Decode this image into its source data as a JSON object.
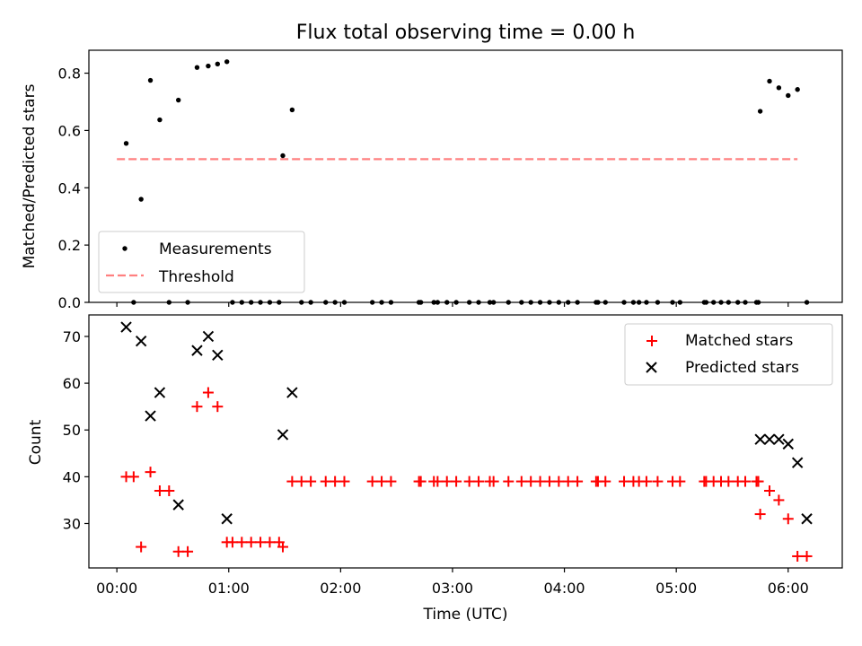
{
  "chart_data": [
    {
      "type": "scatter",
      "title": "Flux total observing time = 0.00 h",
      "xlabel": "",
      "ylabel": "Matched/Predicted stars",
      "ylim": [
        0,
        0.88
      ],
      "xlim_minutes": [
        -15,
        389
      ],
      "yticks": [
        0.0,
        0.2,
        0.4,
        0.6,
        0.8
      ],
      "ytick_labels": [
        "0.0",
        "0.2",
        "0.4",
        "0.6",
        "0.8"
      ],
      "legend_position": "lower-left",
      "series": [
        {
          "name": "Measurements",
          "marker": "dot",
          "color": "#000000",
          "points": [
            [
              5,
              0.555
            ],
            [
              9,
              0.0
            ],
            [
              13,
              0.36
            ],
            [
              18,
              0.775
            ],
            [
              23,
              0.637
            ],
            [
              28,
              0.0
            ],
            [
              33,
              0.706
            ],
            [
              38,
              0.0
            ],
            [
              43,
              0.82
            ],
            [
              49,
              0.825
            ],
            [
              54,
              0.832
            ],
            [
              59,
              0.84
            ],
            [
              62,
              0.0
            ],
            [
              67,
              0.0
            ],
            [
              72,
              0.0
            ],
            [
              77,
              0.0
            ],
            [
              82,
              0.0
            ],
            [
              87,
              0.0
            ],
            [
              89,
              0.512
            ],
            [
              94,
              0.672
            ],
            [
              99,
              0.0
            ],
            [
              104,
              0.0
            ],
            [
              112,
              0.0
            ],
            [
              117,
              0.0
            ],
            [
              122,
              0.0
            ],
            [
              137,
              0.0
            ],
            [
              142,
              0.0
            ],
            [
              147,
              0.0
            ],
            [
              162,
              0.0
            ],
            [
              163,
              0.0
            ],
            [
              170,
              0.0
            ],
            [
              172,
              0.0
            ],
            [
              177,
              0.0
            ],
            [
              182,
              0.0
            ],
            [
              189,
              0.0
            ],
            [
              194,
              0.0
            ],
            [
              200,
              0.0
            ],
            [
              202,
              0.0
            ],
            [
              210,
              0.0
            ],
            [
              217,
              0.0
            ],
            [
              222,
              0.0
            ],
            [
              227,
              0.0
            ],
            [
              232,
              0.0
            ],
            [
              237,
              0.0
            ],
            [
              242,
              0.0
            ],
            [
              247,
              0.0
            ],
            [
              257,
              0.0
            ],
            [
              258,
              0.0
            ],
            [
              262,
              0.0
            ],
            [
              272,
              0.0
            ],
            [
              277,
              0.0
            ],
            [
              280,
              0.0
            ],
            [
              284,
              0.0
            ],
            [
              290,
              0.0
            ],
            [
              298,
              0.0
            ],
            [
              302,
              0.0
            ],
            [
              315,
              0.0
            ],
            [
              316,
              0.0
            ],
            [
              320,
              0.0
            ],
            [
              324,
              0.0
            ],
            [
              328,
              0.0
            ],
            [
              333,
              0.0
            ],
            [
              337,
              0.0
            ],
            [
              343,
              0.0
            ],
            [
              344,
              0.0
            ],
            [
              345,
              0.667
            ],
            [
              350,
              0.772
            ],
            [
              355,
              0.749
            ],
            [
              360,
              0.722
            ],
            [
              365,
              0.743
            ],
            [
              370,
              0.0
            ]
          ]
        },
        {
          "name": "Threshold",
          "style": "dashed",
          "color": "#ff8080",
          "x": [
            0,
            365
          ],
          "y": [
            0.5,
            0.5
          ]
        }
      ]
    },
    {
      "type": "scatter",
      "title": "",
      "xlabel": "Time (UTC)",
      "ylabel": "Count",
      "ylim": [
        20.5,
        74.6
      ],
      "xlim_minutes": [
        -15,
        389
      ],
      "yticks": [
        30,
        40,
        50,
        60,
        70
      ],
      "ytick_labels": [
        "30",
        "40",
        "50",
        "60",
        "70"
      ],
      "xticks_minutes": [
        0,
        60,
        120,
        180,
        240,
        300,
        360
      ],
      "xtick_labels": [
        "00:00",
        "01:00",
        "02:00",
        "03:00",
        "04:00",
        "05:00",
        "06:00"
      ],
      "legend_position": "upper-right",
      "series": [
        {
          "name": "Matched stars",
          "marker": "plus",
          "color": "#ff0000",
          "points": [
            [
              5,
              40
            ],
            [
              9,
              40
            ],
            [
              13,
              25
            ],
            [
              18,
              41
            ],
            [
              23,
              37
            ],
            [
              28,
              37
            ],
            [
              33,
              24
            ],
            [
              38,
              24
            ],
            [
              43,
              55
            ],
            [
              49,
              58
            ],
            [
              54,
              55
            ],
            [
              59,
              26
            ],
            [
              62,
              26
            ],
            [
              67,
              26
            ],
            [
              72,
              26
            ],
            [
              77,
              26
            ],
            [
              82,
              26
            ],
            [
              87,
              26
            ],
            [
              89,
              25
            ],
            [
              94,
              39
            ],
            [
              99,
              39
            ],
            [
              104,
              39
            ],
            [
              112,
              39
            ],
            [
              117,
              39
            ],
            [
              122,
              39
            ],
            [
              137,
              39
            ],
            [
              142,
              39
            ],
            [
              147,
              39
            ],
            [
              162,
              39
            ],
            [
              163,
              39
            ],
            [
              170,
              39
            ],
            [
              172,
              39
            ],
            [
              177,
              39
            ],
            [
              182,
              39
            ],
            [
              189,
              39
            ],
            [
              194,
              39
            ],
            [
              200,
              39
            ],
            [
              202,
              39
            ],
            [
              210,
              39
            ],
            [
              217,
              39
            ],
            [
              222,
              39
            ],
            [
              227,
              39
            ],
            [
              232,
              39
            ],
            [
              237,
              39
            ],
            [
              242,
              39
            ],
            [
              247,
              39
            ],
            [
              257,
              39
            ],
            [
              258,
              39
            ],
            [
              262,
              39
            ],
            [
              272,
              39
            ],
            [
              277,
              39
            ],
            [
              280,
              39
            ],
            [
              284,
              39
            ],
            [
              290,
              39
            ],
            [
              298,
              39
            ],
            [
              302,
              39
            ],
            [
              315,
              39
            ],
            [
              316,
              39
            ],
            [
              320,
              39
            ],
            [
              324,
              39
            ],
            [
              328,
              39
            ],
            [
              333,
              39
            ],
            [
              337,
              39
            ],
            [
              343,
              39
            ],
            [
              344,
              39
            ],
            [
              345,
              32
            ],
            [
              350,
              37
            ],
            [
              355,
              35
            ],
            [
              360,
              31
            ],
            [
              365,
              23
            ],
            [
              370,
              23
            ]
          ]
        },
        {
          "name": "Predicted stars",
          "marker": "x",
          "color": "#000000",
          "points": [
            [
              5,
              72
            ],
            [
              13,
              69
            ],
            [
              18,
              53
            ],
            [
              23,
              58
            ],
            [
              33,
              34
            ],
            [
              43,
              67
            ],
            [
              49,
              70
            ],
            [
              54,
              66
            ],
            [
              59,
              31
            ],
            [
              89,
              49
            ],
            [
              94,
              58
            ],
            [
              345,
              48
            ],
            [
              350,
              48
            ],
            [
              355,
              48
            ],
            [
              360,
              47
            ],
            [
              365,
              43
            ],
            [
              370,
              31
            ]
          ]
        }
      ]
    }
  ]
}
